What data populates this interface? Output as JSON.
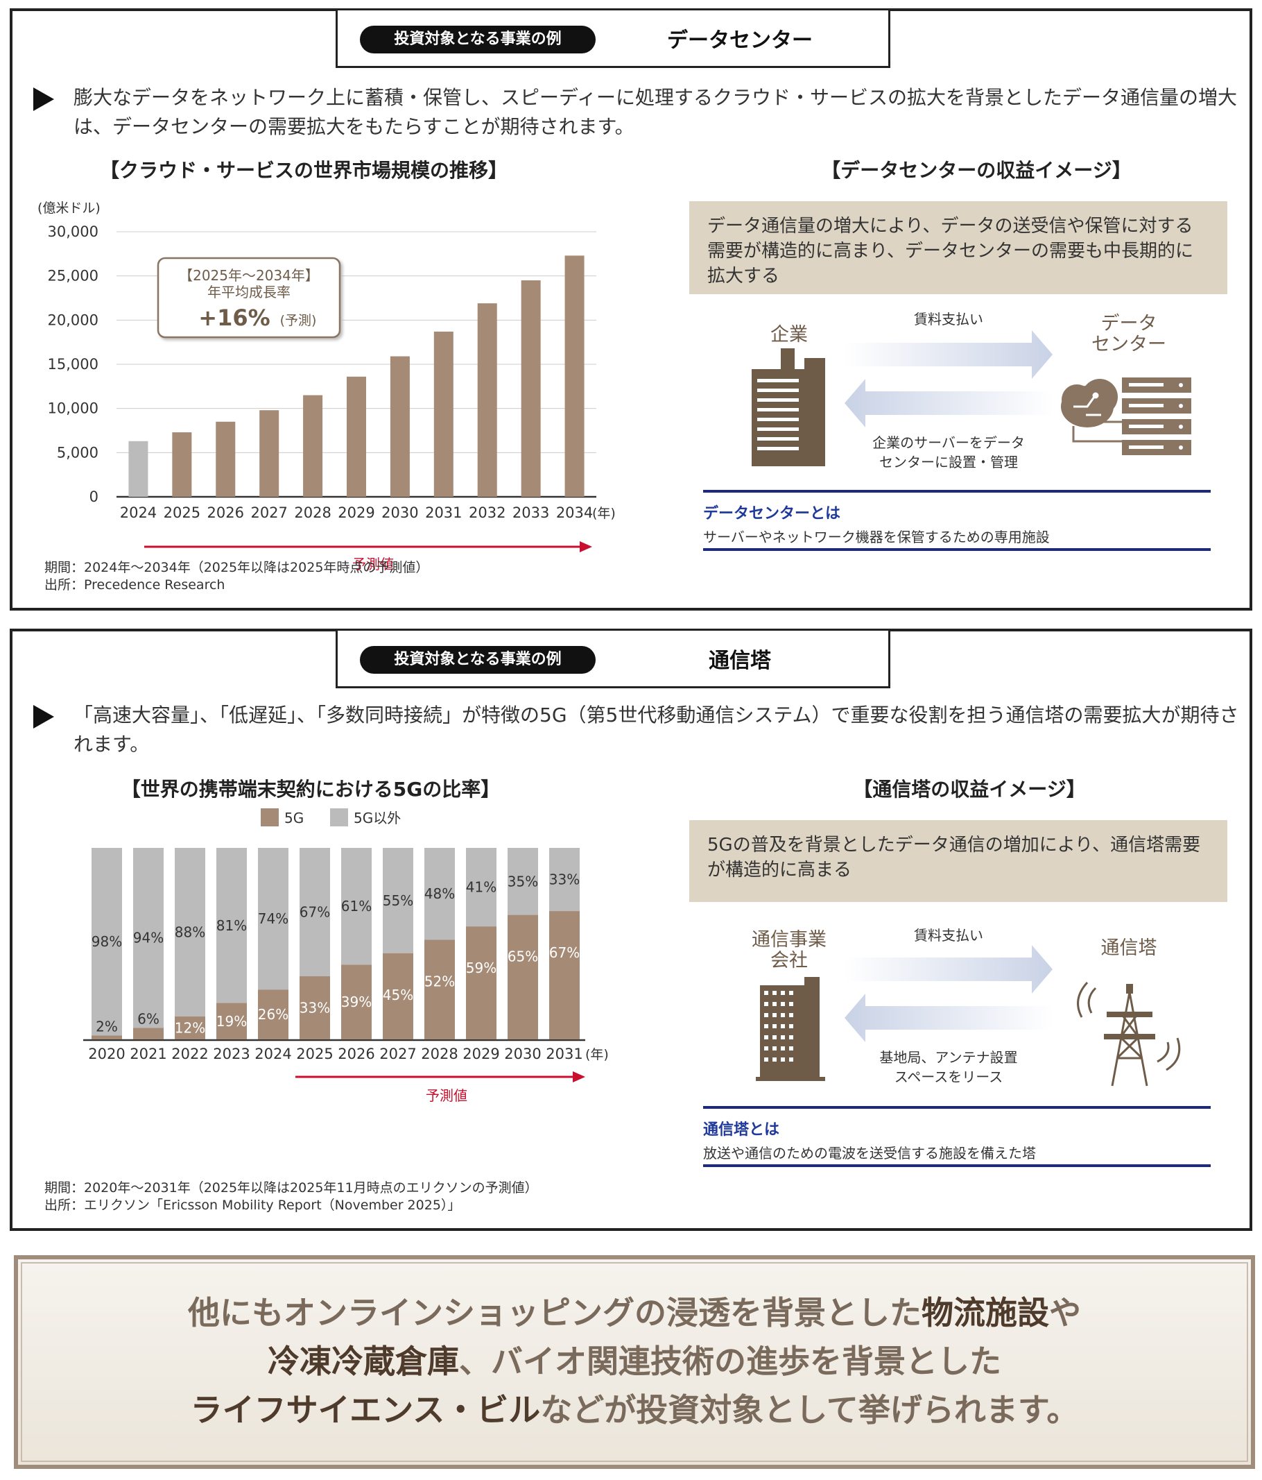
{
  "panel1": {
    "tag": "投資対象となる事業の例",
    "name": "データセンター",
    "lead": "膨大なデータをネットワーク上に蓄積・保管し、スピーディーに処理するクラウド・サービスの拡大を背景としたデータ通信量の増大は、データセンターの需要拡大をもたらすことが期待されます。",
    "chart_title": "【クラウド・サービスの世界市場規模の推移】",
    "unit": "(億米ドル)",
    "year_suffix": "(年)",
    "forecast_label": "予測値",
    "callout_line1": "【2025年〜2034年】",
    "callout_line2": "年平均成長率",
    "callout_value": "+16%",
    "callout_suffix": "(予測)",
    "note_line1": "期間：2024年〜2034年（2025年以降は2025年時点の予測値）",
    "note_line2": "出所：Precedence Research",
    "image_title": "【データセンターの収益イメージ】",
    "image_desc": "データ通信量の増大により、データの送受信や保管に対する需要が構造的に高まり、データセンターの需要も中長期的に拡大する",
    "party_left": "企業",
    "party_right_1": "データ",
    "party_right_2": "センター",
    "arrow_top_label": "賃料支払い",
    "arrow_bottom_line1": "企業のサーバーをデータ",
    "arrow_bottom_line2": "センターに設置・管理",
    "def_term": "データセンターとは",
    "def_text": "サーバーやネットワーク機器を保管するための専用施設"
  },
  "panel2": {
    "tag": "投資対象となる事業の例",
    "name": "通信塔",
    "lead": "「高速大容量」、「低遅延」、「多数同時接続」が特徴の5G（第5世代移動通信システム）で重要な役割を担う通信塔の需要拡大が期待されます。",
    "chart_title": "【世界の携帯端末契約における5Gの比率】",
    "year_suffix": "(年)",
    "forecast_label": "予測値",
    "note_line1": "期間：2020年〜2031年（2025年以降は2025年11月時点のエリクソンの予測値）",
    "note_line2": "出所：エリクソン「Ericsson Mobility Report（November 2025）」",
    "image_title": "【通信塔の収益イメージ】",
    "image_desc": "5Gの普及を背景としたデータ通信の増加により、通信塔需要が構造的に高まる",
    "party_left_1": "通信事業",
    "party_left_2": "会社",
    "party_right": "通信塔",
    "arrow_top_label": "賃料支払い",
    "arrow_bottom_line1": "基地局、アンテナ設置",
    "arrow_bottom_line2": "スペースをリース",
    "def_term": "通信塔とは",
    "def_text": "放送や通信のための電波を送受信する施設を備えた塔"
  },
  "bottom": {
    "line1_a": "他にもオンラインショッピングの浸透を背景とした",
    "line1_b": "物流施設",
    "line1_c": "や",
    "line2_a": "冷凍冷蔵倉庫",
    "line2_b": "、バイオ関連技術の進歩を背景とした",
    "line3_a": "ライフサイエンス・ビル",
    "line3_b": "などが投資対象として挙げられます。"
  },
  "colors": {
    "brown": "#a58a76",
    "gray": "#bbbbbb",
    "forecast_red": "#c8102e",
    "navy": "#1d2a7a",
    "beige": "#ddd4c3"
  },
  "chart_data": [
    {
      "type": "bar",
      "title": "【クラウド・サービスの世界市場規模の推移】",
      "ylabel": "(億米ドル)",
      "xlabel": "(年)",
      "categories": [
        "2024",
        "2025",
        "2026",
        "2027",
        "2028",
        "2029",
        "2030",
        "2031",
        "2032",
        "2033",
        "2034"
      ],
      "values": [
        6300,
        7300,
        8500,
        9800,
        11500,
        13600,
        15900,
        18700,
        21900,
        24500,
        27300
      ],
      "yticks": [
        "0",
        "5,000",
        "10,000",
        "15,000",
        "20,000",
        "25,000",
        "30,000"
      ],
      "ylim": [
        0,
        30000
      ],
      "grid": true,
      "actual_color": "#bbbbbb",
      "forecast_color": "#a58a76"
    },
    {
      "type": "bar",
      "stacked": true,
      "title": "【世界の携帯端末契約における5Gの比率】",
      "xlabel": "(年)",
      "categories": [
        "2020",
        "2021",
        "2022",
        "2023",
        "2024",
        "2025",
        "2026",
        "2027",
        "2028",
        "2029",
        "2030",
        "2031"
      ],
      "series": [
        {
          "name": "5G",
          "color": "#a58a76",
          "values": [
            2,
            6,
            12,
            19,
            26,
            33,
            39,
            45,
            52,
            59,
            65,
            67
          ],
          "labels": [
            "2%",
            "6%",
            "12%",
            "19%",
            "26%",
            "33%",
            "39%",
            "45%",
            "52%",
            "59%",
            "65%",
            "67%"
          ]
        },
        {
          "name": "5G以外",
          "color": "#bbbbbb",
          "values": [
            98,
            94,
            88,
            81,
            74,
            67,
            61,
            55,
            48,
            41,
            35,
            33
          ],
          "labels": [
            "98%",
            "94%",
            "88%",
            "81%",
            "74%",
            "67%",
            "61%",
            "55%",
            "48%",
            "41%",
            "35%",
            "33%"
          ]
        }
      ],
      "ylim": [
        0,
        100
      ],
      "legend": "top"
    }
  ]
}
